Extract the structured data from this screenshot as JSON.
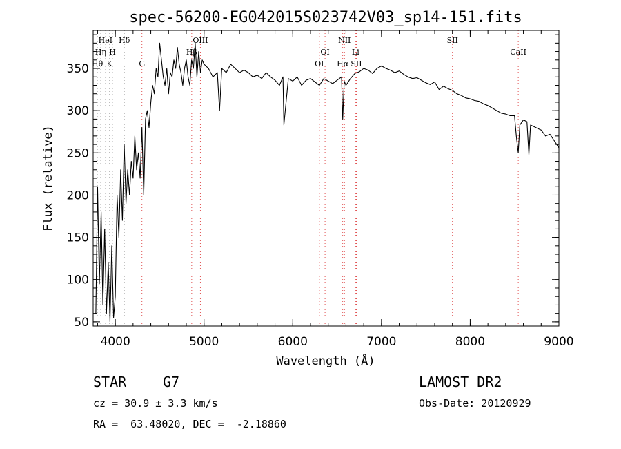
{
  "chart_data": {
    "type": "line",
    "title": "spec-56200-EG042015S023742V03_sp14-151.fits",
    "xlabel": "Wavelength (Å)",
    "ylabel": "Flux (relative)",
    "xlim": [
      3750,
      9000
    ],
    "ylim": [
      45,
      395
    ],
    "xticks": [
      4000,
      5000,
      6000,
      7000,
      8000,
      9000
    ],
    "yticks": [
      50,
      100,
      150,
      200,
      250,
      300,
      350
    ],
    "series": [
      {
        "x": [
          3780,
          3800,
          3820,
          3840,
          3860,
          3880,
          3900,
          3920,
          3940,
          3960,
          3980,
          4000,
          4020,
          4040,
          4060,
          4080,
          4100,
          4120,
          4140,
          4160,
          4180,
          4200,
          4220,
          4240,
          4260,
          4280,
          4300,
          4320,
          4340,
          4360,
          4380,
          4400,
          4420,
          4440,
          4460,
          4480,
          4500,
          4520,
          4540,
          4560,
          4580,
          4600,
          4620,
          4640,
          4660,
          4680,
          4700,
          4720,
          4740,
          4760,
          4780,
          4800,
          4820,
          4840,
          4860,
          4880,
          4900,
          4920,
          4940,
          4960,
          4980,
          5000,
          5050,
          5100,
          5150,
          5175,
          5200,
          5250,
          5300,
          5350,
          5400,
          5450,
          5500,
          5550,
          5600,
          5650,
          5700,
          5750,
          5800,
          5850,
          5890,
          5900,
          5950,
          6000,
          6050,
          6100,
          6150,
          6200,
          6250,
          6300,
          6350,
          6400,
          6450,
          6500,
          6550,
          6563,
          6580,
          6600,
          6650,
          6700,
          6750,
          6800,
          6850,
          6900,
          6950,
          7000,
          7050,
          7100,
          7150,
          7200,
          7250,
          7300,
          7350,
          7400,
          7450,
          7500,
          7550,
          7600,
          7650,
          7700,
          7750,
          7800,
          7850,
          7900,
          7950,
          8000,
          8050,
          8100,
          8150,
          8200,
          8250,
          8300,
          8350,
          8400,
          8450,
          8500,
          8520,
          8542,
          8560,
          8600,
          8640,
          8662,
          8680,
          8720,
          8760,
          8800,
          8850,
          8900,
          8950,
          9000
        ],
        "y": [
          60,
          210,
          95,
          180,
          70,
          160,
          60,
          120,
          50,
          140,
          55,
          80,
          200,
          150,
          230,
          170,
          260,
          190,
          230,
          200,
          240,
          220,
          270,
          230,
          250,
          220,
          280,
          200,
          290,
          300,
          280,
          310,
          330,
          320,
          350,
          340,
          380,
          360,
          340,
          330,
          350,
          320,
          345,
          340,
          360,
          350,
          375,
          355,
          345,
          330,
          350,
          360,
          340,
          330,
          360,
          350,
          380,
          340,
          370,
          345,
          360,
          355,
          350,
          340,
          345,
          300,
          350,
          345,
          355,
          350,
          345,
          348,
          345,
          340,
          342,
          338,
          345,
          340,
          336,
          330,
          340,
          283,
          338,
          335,
          340,
          330,
          336,
          338,
          334,
          330,
          338,
          335,
          332,
          336,
          340,
          290,
          335,
          330,
          338,
          344,
          346,
          350,
          348,
          344,
          350,
          353,
          350,
          348,
          345,
          347,
          343,
          340,
          338,
          339,
          336,
          333,
          331,
          334,
          325,
          329,
          326,
          324,
          320,
          318,
          315,
          314,
          312,
          311,
          308,
          306,
          303,
          300,
          297,
          296,
          294,
          294,
          270,
          250,
          283,
          289,
          287,
          248,
          283,
          281,
          279,
          277,
          270,
          272,
          264,
          256
        ]
      }
    ],
    "lines": [
      {
        "label": "HeI",
        "x": 3889,
        "row": 1,
        "color": "#b0b0b0"
      },
      {
        "label": "Hη",
        "x": 3835,
        "row": 2,
        "color": "#b0b0b0"
      },
      {
        "label": "H",
        "x": 3968,
        "row": 2,
        "color": "#b0b0b0"
      },
      {
        "label": "Hθ",
        "x": 3798,
        "row": 3,
        "color": "#b0b0b0"
      },
      {
        "label": "K",
        "x": 3934,
        "row": 3,
        "color": "#b0b0b0"
      },
      {
        "label": "Hδ",
        "x": 4102,
        "row": 1,
        "color": "#b0b0b0"
      },
      {
        "label": "G",
        "x": 4300,
        "row": 3,
        "color": "#e05050"
      },
      {
        "label": "Hβ",
        "x": 4861,
        "row": 2,
        "color": "#e05050"
      },
      {
        "label": "OIII",
        "x": 4959,
        "row": 1,
        "color": "#e05050"
      },
      {
        "label": "OI",
        "x": 6300,
        "row": 3,
        "color": "#e05050"
      },
      {
        "label": "OI",
        "x": 6364,
        "row": 2,
        "color": "#e05050"
      },
      {
        "label": "NII",
        "x": 6583,
        "row": 1,
        "color": "#e05050"
      },
      {
        "label": "Hα",
        "x": 6563,
        "row": 3,
        "color": "#e05050"
      },
      {
        "label": "Li",
        "x": 6708,
        "row": 2,
        "color": "#e05050"
      },
      {
        "label": "SII",
        "x": 6717,
        "row": 3,
        "color": "#e05050"
      },
      {
        "label": "SII",
        "x": 7800,
        "row": 1,
        "color": "#e05050"
      },
      {
        "label": "CaII",
        "x": 8542,
        "row": 2,
        "color": "#e05050"
      }
    ]
  },
  "info": {
    "object_class": "STAR",
    "subclass": "G7",
    "survey": "LAMOST DR2",
    "cz": "cz = 30.9 ± 3.3 km/s",
    "obs_date": "Obs-Date: 20120929",
    "coords": "RA =  63.48020, DEC =  -2.18860"
  }
}
